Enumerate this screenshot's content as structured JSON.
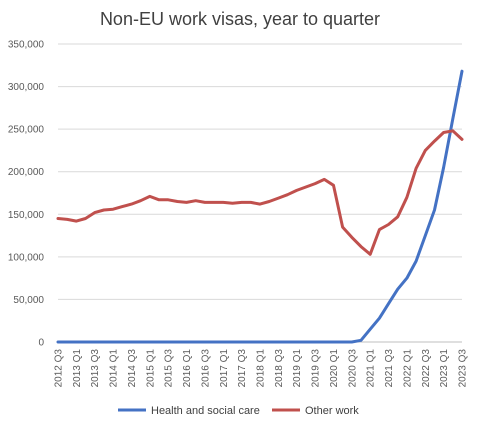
{
  "chart_data": {
    "type": "line",
    "title": "Non-EU work visas, year to quarter",
    "xlabel": "",
    "ylabel": "",
    "categories": [
      "2012 Q3",
      "2012 Q4",
      "2013 Q1",
      "2013 Q2",
      "2013 Q3",
      "2013 Q4",
      "2014 Q1",
      "2014 Q2",
      "2014 Q3",
      "2014 Q4",
      "2015 Q1",
      "2015 Q2",
      "2015 Q3",
      "2015 Q4",
      "2016 Q1",
      "2016 Q2",
      "2016 Q3",
      "2016 Q4",
      "2017 Q1",
      "2017 Q2",
      "2017 Q3",
      "2017 Q4",
      "2018 Q1",
      "2018 Q2",
      "2018 Q3",
      "2018 Q4",
      "2019 Q1",
      "2019 Q2",
      "2019 Q3",
      "2019 Q4",
      "2020 Q1",
      "2020 Q2",
      "2020 Q3",
      "2020 Q4",
      "2021 Q1",
      "2021 Q2",
      "2021 Q3",
      "2021 Q4",
      "2022 Q1",
      "2022 Q2",
      "2022 Q3",
      "2022 Q4",
      "2023 Q1",
      "2023 Q2",
      "2023 Q3"
    ],
    "tick_labels": [
      "2012 Q3",
      "2013 Q1",
      "2013 Q3",
      "2014 Q1",
      "2014 Q3",
      "2015 Q1",
      "2015 Q3",
      "2016 Q1",
      "2016 Q3",
      "2017 Q1",
      "2017 Q3",
      "2018 Q1",
      "2018 Q3",
      "2019 Q1",
      "2019 Q3",
      "2020 Q1",
      "2020 Q3",
      "2021 Q1",
      "2021 Q3",
      "2022 Q1",
      "2022 Q3",
      "2023 Q1",
      "2023 Q3"
    ],
    "ylim": [
      0,
      350000
    ],
    "y_ticks": [
      0,
      50000,
      100000,
      150000,
      200000,
      250000,
      300000,
      350000
    ],
    "y_tick_labels": [
      "0",
      "50,000",
      "100,000",
      "150,000",
      "200,000",
      "250,000",
      "300,000",
      "350,000"
    ],
    "grid": true,
    "legend_position": "bottom",
    "series": [
      {
        "name": "Health and social care",
        "color": "#4472C4",
        "values": [
          0,
          0,
          0,
          0,
          0,
          0,
          0,
          0,
          0,
          0,
          0,
          0,
          0,
          0,
          0,
          0,
          0,
          0,
          0,
          0,
          0,
          0,
          0,
          0,
          0,
          0,
          0,
          0,
          0,
          0,
          0,
          0,
          0,
          2000,
          15000,
          28000,
          45000,
          62000,
          75000,
          95000,
          125000,
          155000,
          205000,
          262000,
          318000
        ]
      },
      {
        "name": "Other work",
        "color": "#C0504D",
        "values": [
          145000,
          144000,
          142000,
          145000,
          152000,
          155000,
          156000,
          159000,
          162000,
          166000,
          171000,
          167000,
          167000,
          165000,
          164000,
          166000,
          164000,
          164000,
          164000,
          163000,
          164000,
          164000,
          162000,
          165000,
          169000,
          173000,
          178000,
          182000,
          186000,
          191000,
          184000,
          135000,
          123000,
          112000,
          103000,
          132000,
          138000,
          147000,
          170000,
          204000,
          225000,
          236000,
          246000,
          248000,
          238000
        ]
      }
    ]
  }
}
